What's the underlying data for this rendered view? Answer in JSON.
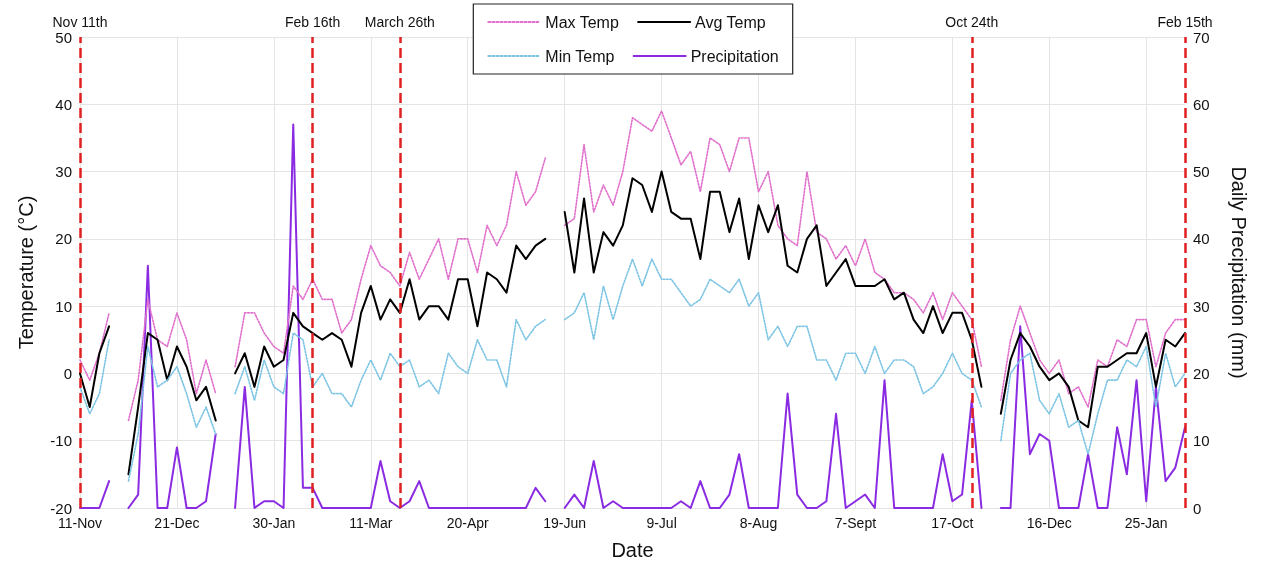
{
  "chart_data": {
    "type": "line",
    "xlabel": "Date",
    "ylabel": "Temperature (°C)",
    "y2label": "Daily Precipitation (mm)",
    "categories": [
      "11-Nov",
      null,
      null,
      null,
      null,
      null,
      null,
      null,
      null,
      null,
      "21-Dec",
      null,
      null,
      null,
      null,
      null,
      null,
      null,
      null,
      null,
      "30-Jan",
      null,
      null,
      null,
      null,
      null,
      null,
      null,
      null,
      null,
      "11-Mar",
      null,
      null,
      null,
      null,
      null,
      null,
      null,
      null,
      null,
      "20-Apr",
      null,
      null,
      null,
      null,
      null,
      null,
      null,
      null,
      null,
      "19-Jun",
      null,
      null,
      null,
      null,
      null,
      null,
      null,
      null,
      null,
      "9-Jul",
      null,
      null,
      null,
      null,
      null,
      null,
      null,
      null,
      null,
      "8-Aug",
      null,
      null,
      null,
      null,
      null,
      null,
      null,
      null,
      null,
      "7-Sept",
      null,
      null,
      null,
      null,
      null,
      null,
      null,
      null,
      null,
      "17-Oct",
      null,
      null,
      null,
      null,
      null,
      null,
      null,
      null,
      null,
      "16-Dec",
      null,
      null,
      null,
      null,
      null,
      null,
      null,
      null,
      null,
      "25-Jan",
      null,
      null,
      null,
      null
    ],
    "ylim": [
      -20,
      50
    ],
    "yticks": [
      -20,
      -10,
      0,
      10,
      20,
      30,
      40,
      50
    ],
    "y2lim": [
      0,
      70
    ],
    "y2ticks": [
      0,
      10,
      20,
      30,
      40,
      50,
      60,
      70
    ],
    "grid": true,
    "legend": "top",
    "marker": "none",
    "annotations": [
      "Nov 11th",
      "Feb 16th",
      "March 26th",
      "Oct 24th",
      "Feb 15th"
    ],
    "series": [
      {
        "name": "Max Temp",
        "color": "#e070cc",
        "line_style": "dotted",
        "values": [
          2,
          -1,
          3,
          9,
          null,
          -7,
          -1,
          11,
          5,
          4,
          9,
          5,
          -3,
          2,
          -3,
          null,
          1,
          9,
          9,
          6,
          4,
          3,
          13,
          11,
          14,
          11,
          11,
          6,
          8,
          14,
          19,
          16,
          15,
          13,
          18,
          14,
          17,
          20,
          14,
          20,
          20,
          15,
          22,
          19,
          22,
          30,
          25,
          27,
          32,
          null,
          22,
          23,
          34,
          24,
          28,
          25,
          30,
          38,
          37,
          36,
          39,
          35,
          31,
          33,
          27,
          35,
          34,
          30,
          35,
          35,
          27,
          30,
          22,
          20,
          19,
          30,
          21,
          20,
          17,
          19,
          16,
          20,
          15,
          14,
          12,
          12,
          11,
          9,
          12,
          8,
          12,
          10,
          8,
          1,
          null,
          -4,
          5,
          10,
          6,
          2,
          0,
          2,
          -3,
          -2,
          -5,
          2,
          1,
          5,
          4,
          8,
          8,
          1,
          6,
          8,
          8
        ]
      },
      {
        "name": "Avg Temp",
        "color": "#000000",
        "line_style": "solid",
        "values": [
          0,
          -5,
          3,
          7,
          null,
          -15,
          -5,
          6,
          5,
          -1,
          4,
          1,
          -4,
          -2,
          -7,
          null,
          0,
          3,
          -2,
          4,
          1,
          2,
          9,
          7,
          6,
          5,
          6,
          5,
          1,
          9,
          13,
          8,
          11,
          9,
          14,
          8,
          10,
          10,
          8,
          14,
          14,
          7,
          15,
          14,
          12,
          19,
          17,
          19,
          20,
          null,
          24,
          15,
          26,
          15,
          21,
          19,
          22,
          29,
          28,
          24,
          30,
          24,
          23,
          23,
          17,
          27,
          27,
          21,
          26,
          17,
          25,
          21,
          25,
          16,
          15,
          20,
          22,
          13,
          15,
          17,
          13,
          13,
          13,
          14,
          11,
          12,
          8,
          6,
          10,
          6,
          9,
          9,
          5,
          -2,
          null,
          -6,
          2,
          6,
          4,
          1,
          -1,
          0,
          -2,
          -7,
          -8,
          1,
          1,
          2,
          3,
          3,
          6,
          -2,
          5,
          4,
          6
        ]
      },
      {
        "name": "Min Temp",
        "color": "#7cc4e4",
        "line_style": "dotted",
        "values": [
          -2,
          -6,
          -3,
          5,
          null,
          -16,
          -9,
          4,
          -2,
          -1,
          1,
          -3,
          -8,
          -5,
          -9,
          null,
          -3,
          1,
          -4,
          2,
          -2,
          -3,
          6,
          5,
          -2,
          0,
          -3,
          -3,
          -5,
          -1,
          2,
          -1,
          3,
          1,
          2,
          -2,
          -1,
          -3,
          3,
          1,
          0,
          5,
          2,
          2,
          -2,
          8,
          5,
          7,
          8,
          null,
          8,
          9,
          12,
          5,
          13,
          8,
          13,
          17,
          13,
          17,
          14,
          14,
          12,
          10,
          11,
          14,
          13,
          12,
          14,
          10,
          12,
          5,
          7,
          4,
          7,
          7,
          2,
          2,
          -1,
          3,
          3,
          0,
          4,
          0,
          2,
          2,
          1,
          -3,
          -2,
          0,
          3,
          0,
          -1,
          -5,
          null,
          -10,
          0,
          2,
          3,
          -4,
          -6,
          -3,
          -8,
          -7,
          -12,
          -6,
          -1,
          -1,
          2,
          1,
          4,
          -5,
          3,
          -2,
          0
        ]
      },
      {
        "name": "Precipitation",
        "color": "#8a2be2",
        "line_style": "solid",
        "axis": "y2",
        "values": [
          0,
          0,
          0,
          4,
          null,
          0,
          2,
          36,
          0,
          0,
          9,
          0,
          0,
          1,
          11,
          null,
          0,
          18,
          0,
          1,
          1,
          0,
          57,
          3,
          3,
          0,
          0,
          0,
          0,
          0,
          0,
          7,
          1,
          0,
          1,
          4,
          0,
          0,
          0,
          0,
          0,
          0,
          0,
          0,
          0,
          0,
          0,
          3,
          1,
          null,
          0,
          2,
          0,
          7,
          0,
          1,
          0,
          0,
          0,
          0,
          0,
          0,
          1,
          0,
          4,
          0,
          0,
          2,
          8,
          0,
          0,
          0,
          0,
          17,
          2,
          0,
          0,
          1,
          14,
          0,
          1,
          2,
          0,
          19,
          0,
          0,
          0,
          0,
          0,
          8,
          1,
          2,
          16,
          0,
          null,
          0,
          0,
          27,
          8,
          11,
          10,
          0,
          0,
          0,
          8,
          0,
          0,
          12,
          5,
          19,
          1,
          18,
          4,
          6,
          12
        ]
      }
    ]
  }
}
